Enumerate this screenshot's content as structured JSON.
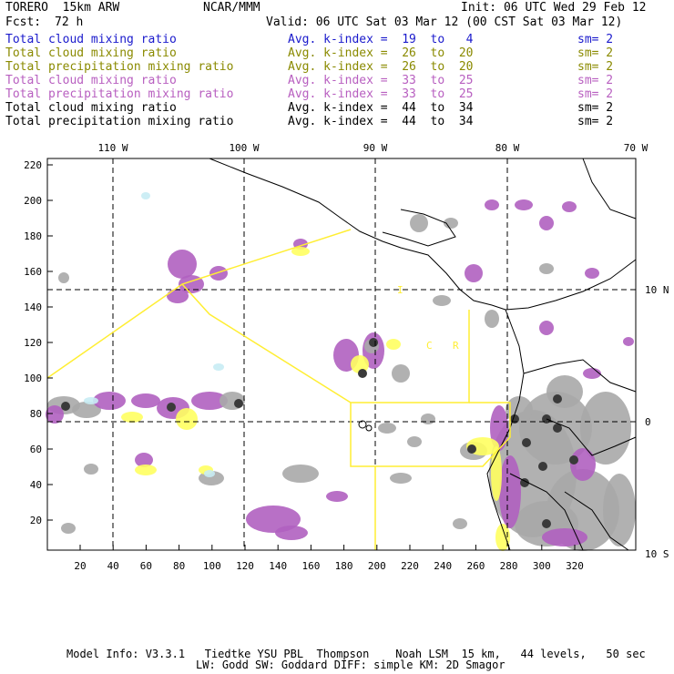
{
  "header": {
    "model": "TORERO  15km ARW",
    "org": "NCAR/MMM",
    "init": "Init: 06 UTC Wed 29 Feb 12",
    "fcst_label": "Fcst:",
    "fcst_hours": "72 h",
    "valid": "Valid: 06 UTC Sat 03 Mar 12 (00 CST Sat 03 Mar 12)"
  },
  "legend": [
    {
      "field": "Total cloud mixing ratio",
      "kindex": "Avg. k-index =  19  to   4",
      "sm": "sm= 2",
      "color": "#1a1acc"
    },
    {
      "field": "Total cloud mixing ratio",
      "kindex": "Avg. k-index =  26  to  20",
      "sm": "sm= 2",
      "color": "#8a8a00"
    },
    {
      "field": "Total precipitation mixing ratio",
      "kindex": "Avg. k-index =  26  to  20",
      "sm": "sm= 2",
      "color": "#8a8a00"
    },
    {
      "field": "Total cloud mixing ratio",
      "kindex": "Avg. k-index =  33  to  25",
      "sm": "sm= 2",
      "color": "#b85fc0"
    },
    {
      "field": "Total precipitation mixing ratio",
      "kindex": "Avg. k-index =  33  to  25",
      "sm": "sm= 2",
      "color": "#b85fc0"
    },
    {
      "field": "Total cloud mixing ratio",
      "kindex": "Avg. k-index =  44  to  34",
      "sm": "sm= 2",
      "color": "#000000"
    },
    {
      "field": "Total precipitation mixing ratio",
      "kindex": "Avg. k-index =  44  to  34",
      "sm": "sm= 2",
      "color": "#000000"
    }
  ],
  "map": {
    "lon_labels": [
      "110 W",
      "100 W",
      "90 W",
      "80 W",
      "70 W"
    ],
    "lat_labels": [
      "10 N",
      "0",
      "10 S"
    ],
    "y_ticks": [
      "220",
      "200",
      "180",
      "160",
      "140",
      "120",
      "100",
      "80",
      "60",
      "40",
      "20"
    ],
    "x_ticks": [
      "20",
      "40",
      "60",
      "80",
      "100",
      "120",
      "140",
      "160",
      "180",
      "200",
      "220",
      "240",
      "260",
      "280",
      "300",
      "320"
    ],
    "region_labels": [
      "C",
      "R",
      "I"
    ],
    "colors": {
      "gray": "#a8a8a8",
      "dark": "#3a3a3a",
      "purple": "#b060c0",
      "yellow": "#ffff60",
      "cyan": "#c8ecf4",
      "box": "#ffee33"
    }
  },
  "footer": {
    "line1": "Model Info: V3.3.1   Tiedtke YSU PBL  Thompson    Noah LSM  15 km,   44 levels,   50 sec",
    "line2": "LW: Godd SW: Goddard DIFF: simple KM: 2D Smagor"
  }
}
